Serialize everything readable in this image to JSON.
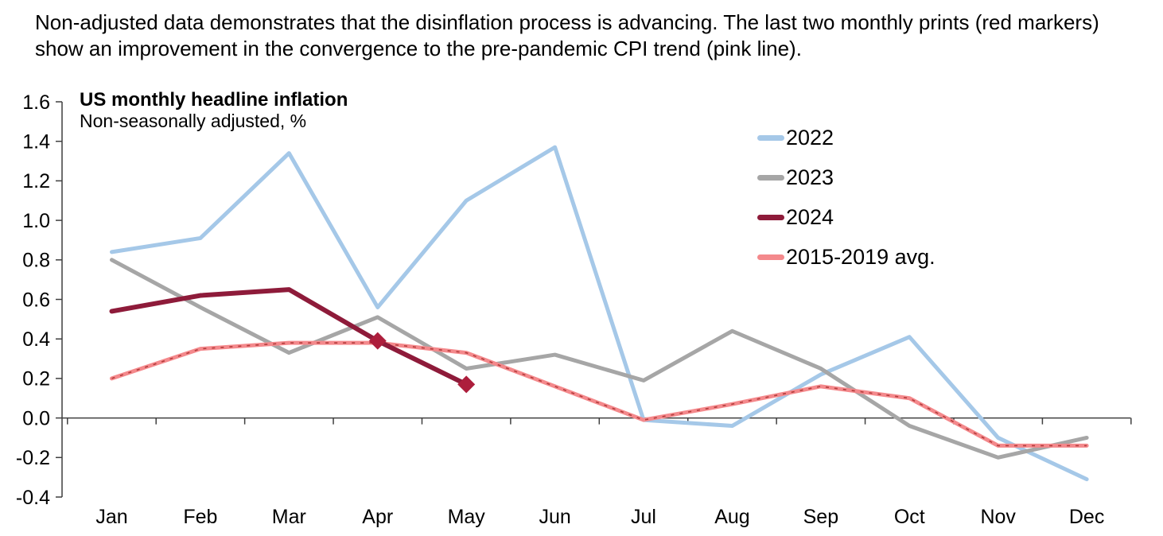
{
  "header": {
    "line1": "Non-adjusted data demonstrates that the disinflation process is advancing. The last two monthly prints (red markers)",
    "line2": "show an improvement in the convergence to the pre-pandemic CPI trend (pink line)."
  },
  "chart_data": {
    "type": "line",
    "title": "US monthly headline inflation",
    "subtitle": "Non-seasonally adjusted, %",
    "categories": [
      "Jan",
      "Feb",
      "Mar",
      "Apr",
      "May",
      "Jun",
      "Jul",
      "Aug",
      "Sep",
      "Oct",
      "Nov",
      "Dec"
    ],
    "y_tick_labels": [
      "1.6",
      "1.4",
      "1.2",
      "1.0",
      "0.8",
      "0.6",
      "0.4",
      "0.2",
      "0.0",
      "-0.2",
      "-0.4"
    ],
    "ylim": [
      -0.4,
      1.6
    ],
    "grid": "zero-line-only",
    "legend_position": "top-right",
    "series": [
      {
        "name": "2022",
        "color": "#A5C8E8",
        "values": [
          0.84,
          0.91,
          1.34,
          0.56,
          1.1,
          1.37,
          -0.01,
          -0.04,
          0.22,
          0.41,
          -0.1,
          -0.31
        ]
      },
      {
        "name": "2023",
        "color": "#A6A6A6",
        "values": [
          0.8,
          0.56,
          0.33,
          0.51,
          0.25,
          0.32,
          0.19,
          0.44,
          0.25,
          -0.04,
          -0.2,
          -0.1
        ]
      },
      {
        "name": "2024",
        "color": "#8E1B3A",
        "marker_color": "#AD1E3C",
        "marker_indices": [
          3,
          4
        ],
        "values": [
          0.54,
          0.62,
          0.65,
          0.39,
          0.17,
          null,
          null,
          null,
          null,
          null,
          null,
          null
        ]
      },
      {
        "name": "2015-2019 avg.",
        "color": "#F4898C",
        "dash_overlay_color": "#B23A3A",
        "values": [
          0.2,
          0.35,
          0.38,
          0.38,
          0.33,
          0.16,
          -0.01,
          0.07,
          0.16,
          0.1,
          -0.14,
          -0.14
        ]
      }
    ],
    "axis_color": "#3F3F3F"
  }
}
